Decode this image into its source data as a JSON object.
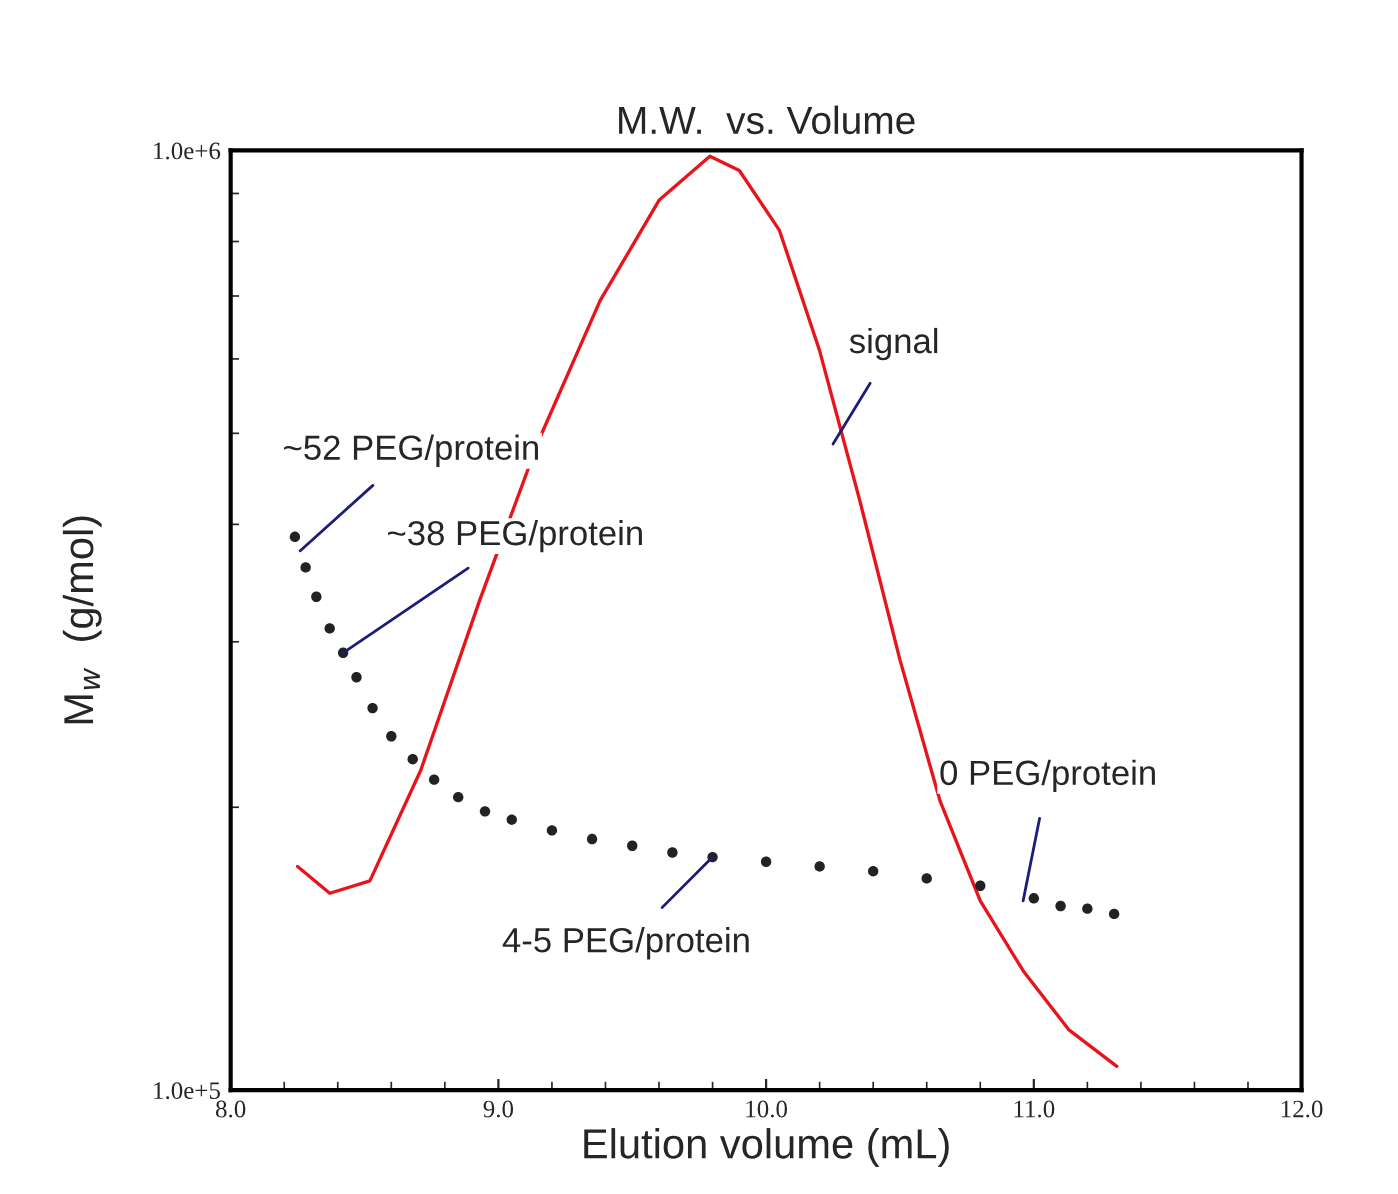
{
  "chart_data": {
    "type": "scatter",
    "title": "M.W.  vs. Volume",
    "xlabel": "Elution volume (mL)",
    "ylabel": "M$_{w}$  (g/mol)",
    "log": "y",
    "grid": false,
    "xlim": [
      8.0,
      12.0
    ],
    "xticks": [
      {
        "value": 8.0,
        "label": "8.0"
      },
      {
        "value": 9.0,
        "label": "9.0"
      },
      {
        "value": 10.0,
        "label": "10.0"
      },
      {
        "value": 11.0,
        "label": "11.0"
      },
      {
        "value": 12.0,
        "label": "12.0"
      }
    ],
    "ylim": [
      100000,
      1000000
    ],
    "yticks": [
      {
        "value": 100000,
        "label": "1.0e+5"
      },
      {
        "value": 1000000,
        "label": "1.0e+6"
      }
    ],
    "series": [
      {
        "type": "line",
        "color": "#e8141c",
        "marker": "none",
        "line_style": "solid",
        "x": [
          8.25,
          8.37,
          8.52,
          8.71,
          8.93,
          9.15,
          9.38,
          9.6,
          9.79,
          9.9,
          10.05,
          10.2,
          10.35,
          10.5,
          10.65,
          10.8,
          10.96,
          11.13,
          11.31
        ],
        "values": [
          173000,
          162000,
          167000,
          219000,
          332000,
          491000,
          692000,
          885000,
          986000,
          952000,
          822000,
          612000,
          424000,
          287000,
          203000,
          159000,
          134000,
          116000,
          106000
        ]
      },
      {
        "color": "#222222",
        "marker": "circle",
        "x": [
          8.24,
          8.28,
          8.32,
          8.37,
          8.42,
          8.47,
          8.53,
          8.6,
          8.68,
          8.76,
          8.85,
          8.95,
          9.05,
          9.2,
          9.35,
          9.5,
          9.65,
          9.8,
          10.0,
          10.2,
          10.4,
          10.6,
          10.8,
          11.0,
          11.1,
          11.2,
          11.3
        ],
        "values": [
          388000,
          360000,
          335000,
          310000,
          292000,
          275000,
          255000,
          238000,
          225000,
          214000,
          205000,
          198000,
          194000,
          189000,
          185000,
          182000,
          179000,
          177000,
          175000,
          173000,
          171000,
          168000,
          165000,
          160000,
          157000,
          156000,
          154000
        ]
      }
    ],
    "annotations": [
      {
        "text": "~52 PEG/protein",
        "x": 8.26,
        "y": 375000
      },
      {
        "text": "~38 PEG/protein",
        "x": 8.42,
        "y": 292000
      },
      {
        "text": "4-5 PEG/protein",
        "x": 9.8,
        "y": 177000
      },
      {
        "text": "0 PEG/protein",
        "x": 10.96,
        "y": 159000
      },
      {
        "text": "signal",
        "x": 10.25,
        "y": 487000
      }
    ]
  }
}
